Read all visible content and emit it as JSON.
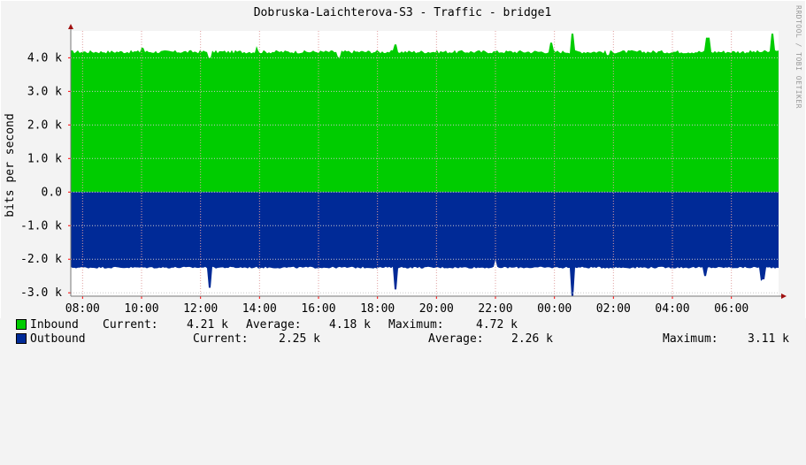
{
  "chart_data": {
    "type": "area",
    "title": "Dobruska-Laichterova-S3 - Traffic - bridge1",
    "ylabel": "bits per second",
    "xlabel": "",
    "credit": "RRDTOOL / TOBI OETIKER",
    "ylim": [
      -3100,
      4800
    ],
    "yticks": [
      {
        "value": 4000,
        "label": "4.0 k"
      },
      {
        "value": 3000,
        "label": "3.0 k"
      },
      {
        "value": 2000,
        "label": "2.0 k"
      },
      {
        "value": 1000,
        "label": "1.0 k"
      },
      {
        "value": 0,
        "label": "0.0"
      },
      {
        "value": -1000,
        "label": "-1.0 k"
      },
      {
        "value": -2000,
        "label": "-2.0 k"
      },
      {
        "value": -3000,
        "label": "-3.0 k"
      }
    ],
    "xlim_hours": [
      7.6,
      31.6
    ],
    "xticks": [
      {
        "hour": 8,
        "label": "08:00"
      },
      {
        "hour": 10,
        "label": "10:00"
      },
      {
        "hour": 12,
        "label": "12:00"
      },
      {
        "hour": 14,
        "label": "14:00"
      },
      {
        "hour": 16,
        "label": "16:00"
      },
      {
        "hour": 18,
        "label": "18:00"
      },
      {
        "hour": 20,
        "label": "20:00"
      },
      {
        "hour": 22,
        "label": "22:00"
      },
      {
        "hour": 24,
        "label": "00:00"
      },
      {
        "hour": 26,
        "label": "02:00"
      },
      {
        "hour": 28,
        "label": "04:00"
      },
      {
        "hour": 30,
        "label": "06:00"
      }
    ],
    "grid": true,
    "series": [
      {
        "name": "Inbound",
        "color": "#00cc00",
        "base": 4180,
        "spikes": [
          [
            10.0,
            4300
          ],
          [
            13.9,
            4350
          ],
          [
            18.6,
            4400
          ],
          [
            23.9,
            4450
          ],
          [
            24.6,
            4720
          ],
          [
            29.2,
            4600
          ],
          [
            31.4,
            4720
          ]
        ],
        "dips": [
          [
            12.3,
            4000
          ],
          [
            16.7,
            4020
          ],
          [
            25.8,
            4080
          ]
        ]
      },
      {
        "name": "Outbound",
        "color": "#002a97",
        "base": -2250,
        "spikes": [
          [
            12.3,
            -2850
          ],
          [
            18.6,
            -2900
          ],
          [
            24.6,
            -3110
          ],
          [
            29.1,
            -2500
          ],
          [
            31.0,
            -2650
          ],
          [
            31.1,
            -2600
          ]
        ],
        "dips": [
          [
            22.0,
            -2000
          ]
        ]
      }
    ],
    "legend": [
      {
        "name": "Inbound",
        "color": "#00cc00",
        "current_label": "Current:",
        "current": "4.21 k",
        "average_label": "Average:",
        "average": "4.18 k",
        "maximum_label": "Maximum:",
        "maximum": "4.72 k"
      },
      {
        "name": "Outbound",
        "color": "#002a97",
        "current_label": "Current:",
        "current": "2.25 k",
        "average_label": "Average:",
        "average": "2.26 k",
        "maximum_label": "Maximum:",
        "maximum": "3.11 k"
      }
    ]
  }
}
